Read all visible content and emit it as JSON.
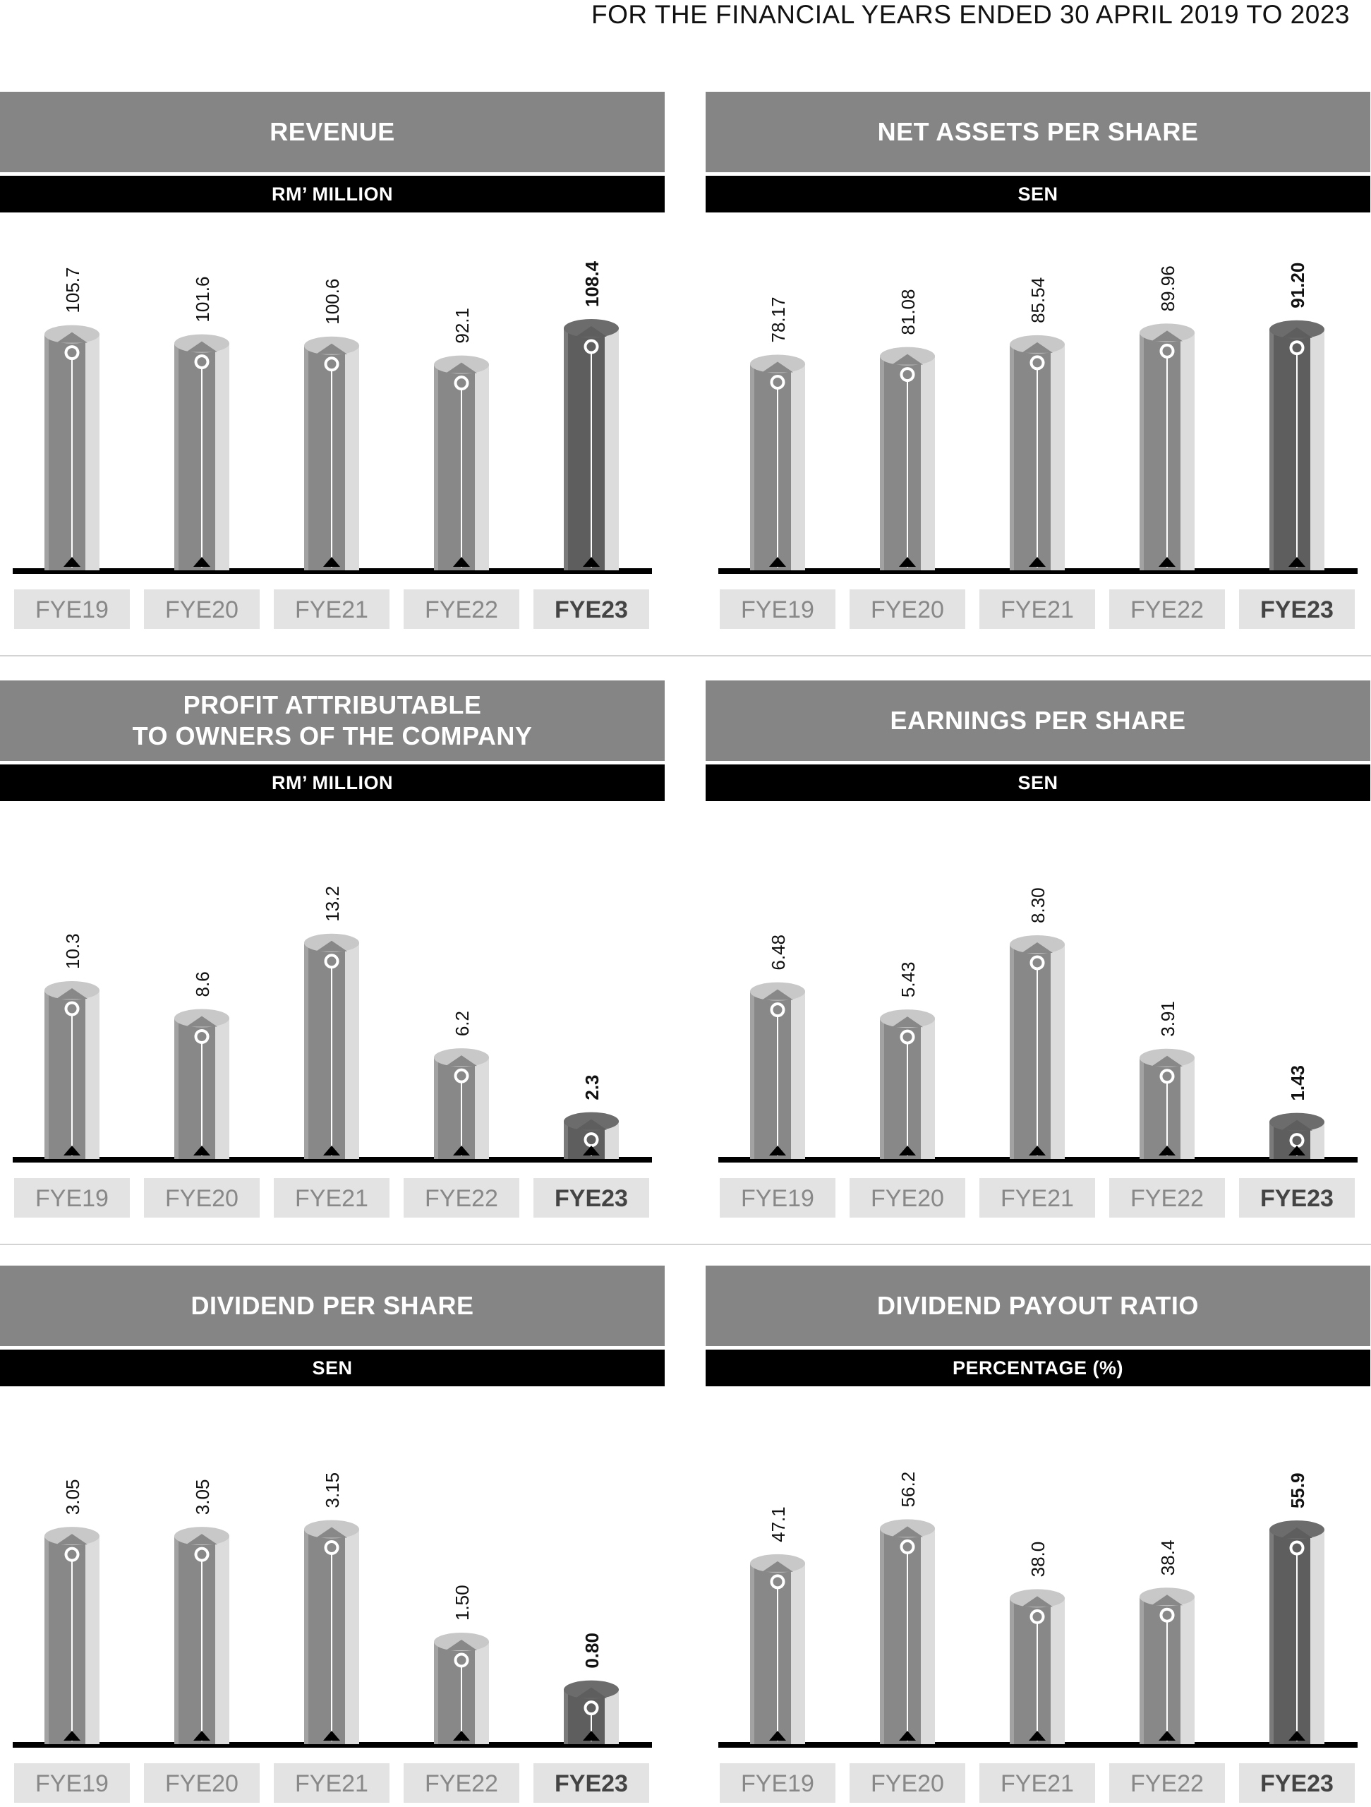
{
  "header": {
    "caption": "FOR THE FINANCIAL YEARS ENDED 30 APRIL 2019 TO 2023"
  },
  "colors": {
    "title_band": "#858586",
    "unit_band": "#000000",
    "bar_regular": "#888889",
    "bar_highlight": "#5e5e5f",
    "baseline": "#000000",
    "category_box": "#e3e3e3"
  },
  "panels": [
    {
      "title": "REVENUE",
      "unit": "RM’ MILLION",
      "chart_data": {
        "type": "bar",
        "title": "REVENUE",
        "ylabel": "RM’ MILLION",
        "categories": [
          "FYE19",
          "FYE20",
          "FYE21",
          "FYE22",
          "FYE23"
        ],
        "values": [
          105.7,
          101.6,
          100.6,
          92.1,
          108.4
        ],
        "labels": [
          "105.7",
          "101.6",
          "100.6",
          "92.1",
          "108.4"
        ],
        "highlight": "FYE23",
        "ylim": [
          0,
          110
        ]
      }
    },
    {
      "title": "NET ASSETS PER SHARE",
      "unit": "SEN",
      "chart_data": {
        "type": "bar",
        "title": "NET ASSETS PER SHARE",
        "ylabel": "SEN",
        "categories": [
          "FYE19",
          "FYE20",
          "FYE21",
          "FYE22",
          "FYE23"
        ],
        "values": [
          78.17,
          81.08,
          85.54,
          89.96,
          91.2
        ],
        "labels": [
          "78.17",
          "81.08",
          "85.54",
          "89.96",
          "91.20"
        ],
        "highlight": "FYE23",
        "ylim": [
          0,
          93
        ]
      }
    },
    {
      "title": "PROFIT ATTRIBUTABLE\nTO OWNERS OF THE COMPANY",
      "unit": "RM’ MILLION",
      "chart_data": {
        "type": "bar",
        "title": "PROFIT ATTRIBUTABLE TO OWNERS OF THE COMPANY",
        "ylabel": "RM’ MILLION",
        "categories": [
          "FYE19",
          "FYE20",
          "FYE21",
          "FYE22",
          "FYE23"
        ],
        "values": [
          10.3,
          8.6,
          13.2,
          6.2,
          2.3
        ],
        "labels": [
          "10.3",
          "8.6",
          "13.2",
          "6.2",
          "2.3"
        ],
        "highlight": "FYE23",
        "ylim": [
          0,
          15
        ]
      }
    },
    {
      "title": "EARNINGS PER SHARE",
      "unit": "SEN",
      "chart_data": {
        "type": "bar",
        "title": "EARNINGS PER SHARE",
        "ylabel": "SEN",
        "categories": [
          "FYE19",
          "FYE20",
          "FYE21",
          "FYE22",
          "FYE23"
        ],
        "values": [
          6.48,
          5.43,
          8.3,
          3.91,
          1.43
        ],
        "labels": [
          "6.48",
          "5.43",
          "8.30",
          "3.91",
          "1.43"
        ],
        "highlight": "FYE23",
        "ylim": [
          0,
          9.5
        ]
      }
    },
    {
      "title": "DIVIDEND PER SHARE",
      "unit": "SEN",
      "chart_data": {
        "type": "bar",
        "title": "DIVIDEND PER SHARE",
        "ylabel": "SEN",
        "categories": [
          "FYE19",
          "FYE20",
          "FYE21",
          "FYE22",
          "FYE23"
        ],
        "values": [
          3.05,
          3.05,
          3.15,
          1.5,
          0.8
        ],
        "labels": [
          "3.05",
          "3.05",
          "3.15",
          "1.50",
          "0.80"
        ],
        "highlight": "FYE23",
        "ylim": [
          0,
          3.6
        ]
      }
    },
    {
      "title": "DIVIDEND PAYOUT RATIO",
      "unit": "PERCENTAGE (%)",
      "chart_data": {
        "type": "bar",
        "title": "DIVIDEND PAYOUT RATIO",
        "ylabel": "PERCENTAGE (%)",
        "categories": [
          "FYE19",
          "FYE20",
          "FYE21",
          "FYE22",
          "FYE23"
        ],
        "values": [
          47.1,
          56.2,
          38.0,
          38.4,
          55.9
        ],
        "labels": [
          "47.1",
          "56.2",
          "38.0",
          "38.4",
          "55.9"
        ],
        "highlight": "FYE23",
        "ylim": [
          0,
          64
        ]
      }
    }
  ]
}
